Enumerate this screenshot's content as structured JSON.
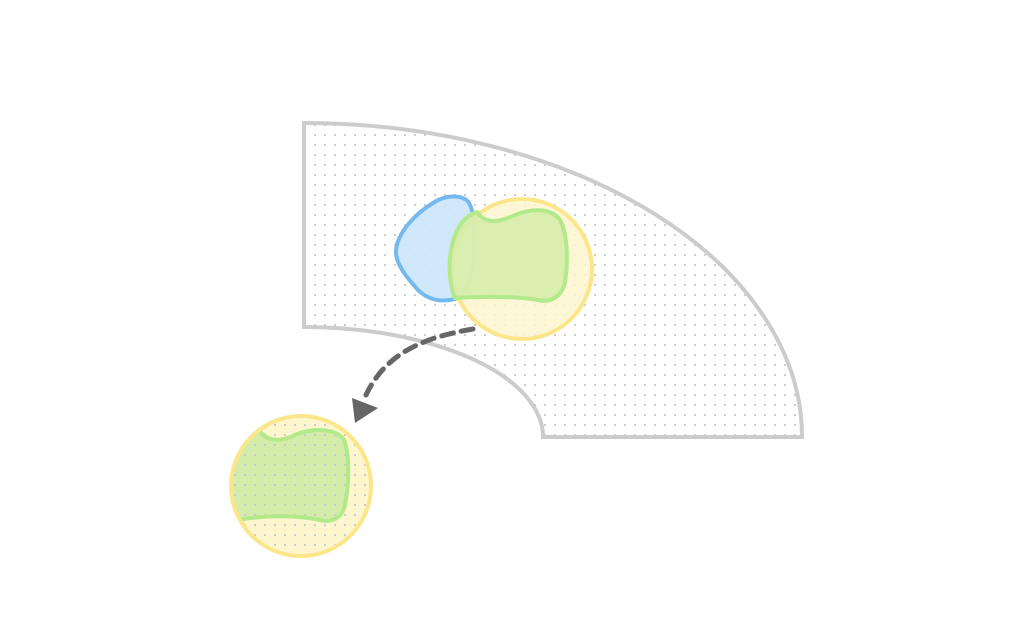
{
  "colors": {
    "background": "#ffffff",
    "region_stroke": "#cccccc",
    "region_fill": "#ffffff",
    "dot": "#c8c8c8",
    "blue_stroke": "#74b9f0",
    "blue_fill": "#cce6fb",
    "yellow_stroke": "#fce68a",
    "yellow_fill": "#fdf6cf",
    "green_stroke": "#b2e98a",
    "green_fill": "#d3eca9",
    "arrow": "#666666"
  },
  "icons": {
    "arrow": "dashed-curved-arrow-icon"
  }
}
